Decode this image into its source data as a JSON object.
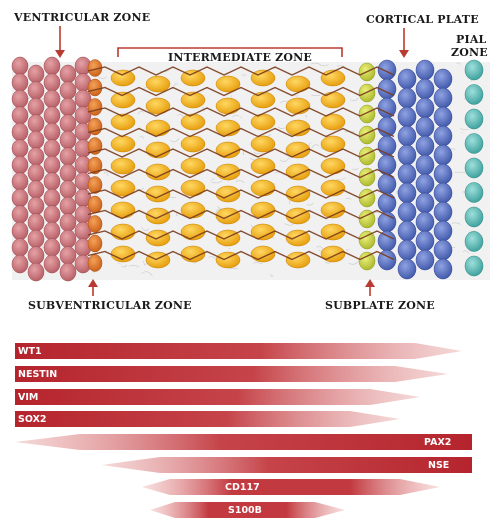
{
  "zones": {
    "ventricular": "VENTRICULAR ZONE",
    "intermediate": "INTERMEDIATE ZONE",
    "cortical_plate": "CORTICAL PLATE",
    "pial_line1": "PIAL",
    "pial_line2": "ZONE",
    "subventricular": "SUBVENTRICULAR ZONE",
    "subplate": "SUBPLATE ZONE"
  },
  "cell_colors": {
    "ventricular": "#c9737a",
    "subventricular": "#e0782a",
    "intermediate": "#f3b61f",
    "subplate": "#d4dc4a",
    "cortical_plate": "#5b74c8",
    "pial": "#5fc0bd",
    "fiber": "#7a3b1c",
    "arrow": "#b83a30"
  },
  "markers": {
    "bar_color": "#b5242c",
    "items": [
      "WT1",
      "NESTIN",
      "VIM",
      "SOX2",
      "PAX2",
      "NSE",
      "CD117",
      "S100B"
    ]
  }
}
